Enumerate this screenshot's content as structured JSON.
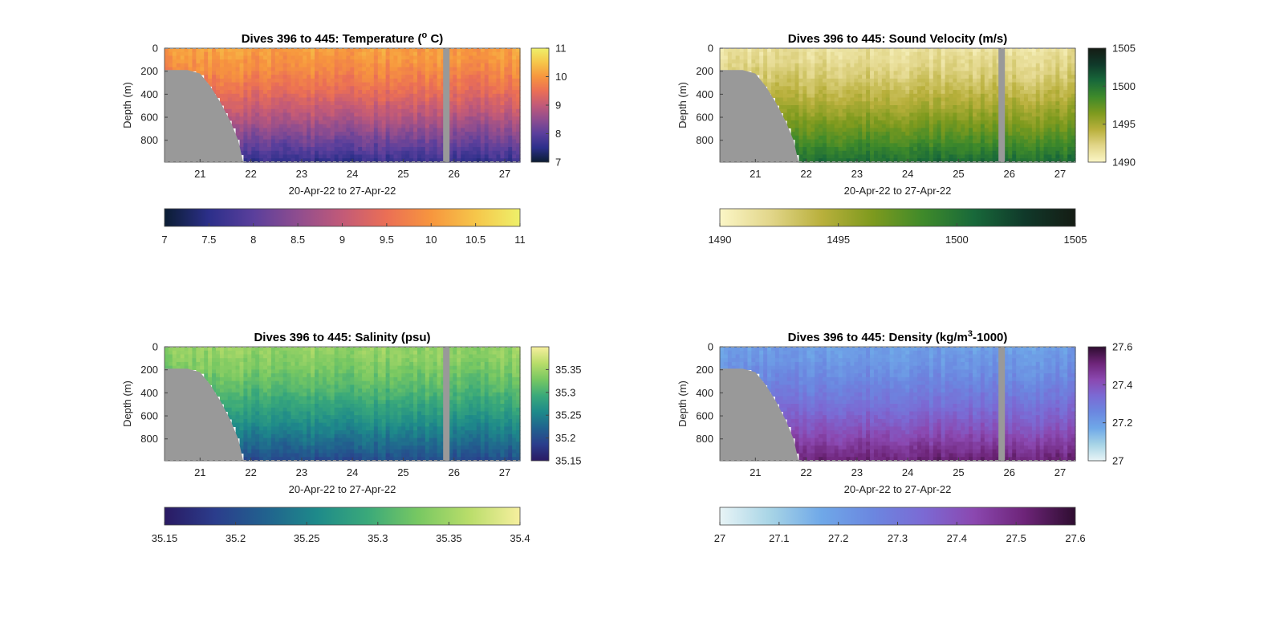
{
  "chart_data": [
    {
      "type": "heatmap",
      "title": "Dives 396 to 445: Temperature (",
      "title_sup": "o",
      "title_end": " C)",
      "xlabel": "20-Apr-22 to 27-Apr-22",
      "ylabel": "Depth (m)",
      "xlim": [
        20.3,
        27.3
      ],
      "ylim": [
        0,
        990
      ],
      "y_reversed": true,
      "x_ticks": [
        "21",
        "22",
        "23",
        "24",
        "25",
        "26",
        "27"
      ],
      "y_ticks": [
        "0",
        "200",
        "400",
        "600",
        "800"
      ],
      "colorbar": {
        "range": [
          7,
          11
        ],
        "side_ticks": [
          "7",
          "8",
          "9",
          "10",
          "11"
        ],
        "bottom_ticks": [
          "7",
          "7.5",
          "8",
          "8.5",
          "9",
          "9.5",
          "10",
          "10.5",
          "11"
        ],
        "colors": [
          "#0b1d33",
          "#2c2f8a",
          "#5a3f9c",
          "#8f4d8f",
          "#c25a78",
          "#eb6f55",
          "#f7963e",
          "#f6c64a",
          "#eef06a"
        ]
      },
      "surface_value": 10.1,
      "bottom_value": 7.6,
      "gap_date": 25.85,
      "seafloor_depth_m": [
        [
          20.3,
          190
        ],
        [
          20.75,
          190
        ],
        [
          21.0,
          220
        ],
        [
          21.2,
          330
        ],
        [
          21.4,
          470
        ],
        [
          21.6,
          640
        ],
        [
          21.75,
          800
        ],
        [
          21.85,
          990
        ]
      ]
    },
    {
      "type": "heatmap",
      "title": "Dives 396 to 445: Sound Velocity (m/s)",
      "xlabel": "20-Apr-22 to 27-Apr-22",
      "ylabel": "Depth (m)",
      "xlim": [
        20.3,
        27.3
      ],
      "ylim": [
        0,
        990
      ],
      "y_reversed": true,
      "x_ticks": [
        "21",
        "22",
        "23",
        "24",
        "25",
        "26",
        "27"
      ],
      "y_ticks": [
        "0",
        "200",
        "400",
        "600",
        "800"
      ],
      "colorbar": {
        "range": [
          1490,
          1505
        ],
        "side_ticks": [
          "1490",
          "1495",
          "1500",
          "1505"
        ],
        "bottom_ticks": [
          "1490",
          "1495",
          "1500",
          "1505"
        ],
        "colors": [
          "#fbf6c6",
          "#e2d68a",
          "#b9b03c",
          "#7e9a1e",
          "#3f8a2a",
          "#18693a",
          "#10392a",
          "#151c14"
        ]
      },
      "surface_value": 1491.5,
      "bottom_value": 1500.5,
      "gap_date": 25.85,
      "seafloor_depth_m": [
        [
          20.3,
          190
        ],
        [
          20.75,
          190
        ],
        [
          21.0,
          220
        ],
        [
          21.2,
          330
        ],
        [
          21.4,
          470
        ],
        [
          21.6,
          640
        ],
        [
          21.75,
          800
        ],
        [
          21.85,
          990
        ]
      ]
    },
    {
      "type": "heatmap",
      "title": "Dives 396 to 445: Salinity (psu)",
      "xlabel": "20-Apr-22 to 27-Apr-22",
      "ylabel": "Depth (m)",
      "xlim": [
        20.3,
        27.3
      ],
      "ylim": [
        0,
        990
      ],
      "y_reversed": true,
      "x_ticks": [
        "21",
        "22",
        "23",
        "24",
        "25",
        "26",
        "27"
      ],
      "y_ticks": [
        "0",
        "200",
        "400",
        "600",
        "800"
      ],
      "colorbar": {
        "range": [
          35.15,
          35.4
        ],
        "side_ticks": [
          "35.15",
          "35.2",
          "35.25",
          "35.3",
          "35.35"
        ],
        "bottom_ticks": [
          "35.15",
          "35.2",
          "35.25",
          "35.3",
          "35.35",
          "35.4"
        ],
        "colors": [
          "#2a1a63",
          "#2b3d8c",
          "#21628e",
          "#1e8a8a",
          "#3aa97a",
          "#78c862",
          "#b9dd6a",
          "#f6ef9e"
        ]
      },
      "surface_value": 35.345,
      "bottom_value": 35.2,
      "gap_date": 25.85,
      "seafloor_depth_m": [
        [
          20.3,
          190
        ],
        [
          20.75,
          190
        ],
        [
          21.0,
          220
        ],
        [
          21.2,
          330
        ],
        [
          21.4,
          470
        ],
        [
          21.6,
          640
        ],
        [
          21.75,
          800
        ],
        [
          21.85,
          990
        ]
      ]
    },
    {
      "type": "heatmap",
      "title": "Dives 396 to 445: Density (kg/m",
      "title_sup": "3",
      "title_end": "-1000)",
      "xlabel": "20-Apr-22 to 27-Apr-22",
      "ylabel": "Depth (m)",
      "xlim": [
        20.3,
        27.3
      ],
      "ylim": [
        0,
        990
      ],
      "y_reversed": true,
      "x_ticks": [
        "21",
        "22",
        "23",
        "24",
        "25",
        "26",
        "27"
      ],
      "y_ticks": [
        "0",
        "200",
        "400",
        "600",
        "800"
      ],
      "colorbar": {
        "range": [
          27,
          27.6
        ],
        "side_ticks": [
          "27",
          "27.2",
          "27.4",
          "27.6"
        ],
        "bottom_ticks": [
          "27",
          "27.1",
          "27.2",
          "27.3",
          "27.4",
          "27.5",
          "27.6"
        ],
        "colors": [
          "#e8f4f6",
          "#a7d4e6",
          "#6fa8e8",
          "#6b87e0",
          "#7b6ad4",
          "#8b48b0",
          "#6d2478",
          "#2e0d30"
        ]
      },
      "surface_value": 27.2,
      "bottom_value": 27.52,
      "gap_date": 25.85,
      "seafloor_depth_m": [
        [
          20.3,
          190
        ],
        [
          20.75,
          190
        ],
        [
          21.0,
          220
        ],
        [
          21.2,
          330
        ],
        [
          21.4,
          470
        ],
        [
          21.6,
          640
        ],
        [
          21.75,
          800
        ],
        [
          21.85,
          990
        ]
      ]
    }
  ]
}
